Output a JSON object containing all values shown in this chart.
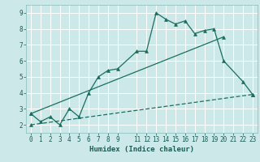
{
  "title": "",
  "xlabel": "Humidex (Indice chaleur)",
  "bg_color": "#cce8e8",
  "grid_color": "#ffffff",
  "line_color": "#1a6e60",
  "xlim": [
    -0.5,
    23.5
  ],
  "ylim": [
    1.5,
    9.5
  ],
  "xticks": [
    0,
    1,
    2,
    3,
    4,
    5,
    6,
    7,
    8,
    9,
    11,
    12,
    13,
    14,
    15,
    16,
    17,
    18,
    19,
    20,
    21,
    22,
    23
  ],
  "yticks": [
    2,
    3,
    4,
    5,
    6,
    7,
    8,
    9
  ],
  "line1_x": [
    0,
    1,
    2,
    3,
    4,
    5,
    6,
    7,
    8,
    9,
    11,
    12,
    13,
    14,
    15,
    16,
    17,
    18,
    19,
    20,
    22,
    23
  ],
  "line1_y": [
    2.7,
    2.2,
    2.5,
    2.0,
    3.0,
    2.5,
    4.0,
    5.0,
    5.4,
    5.5,
    6.6,
    6.6,
    9.0,
    8.6,
    8.3,
    8.5,
    7.7,
    7.9,
    8.0,
    6.0,
    4.7,
    3.9
  ],
  "line2_x": [
    0,
    20
  ],
  "line2_y": [
    2.7,
    7.5
  ],
  "line3_x": [
    0,
    23
  ],
  "line3_y": [
    2.0,
    3.9
  ]
}
